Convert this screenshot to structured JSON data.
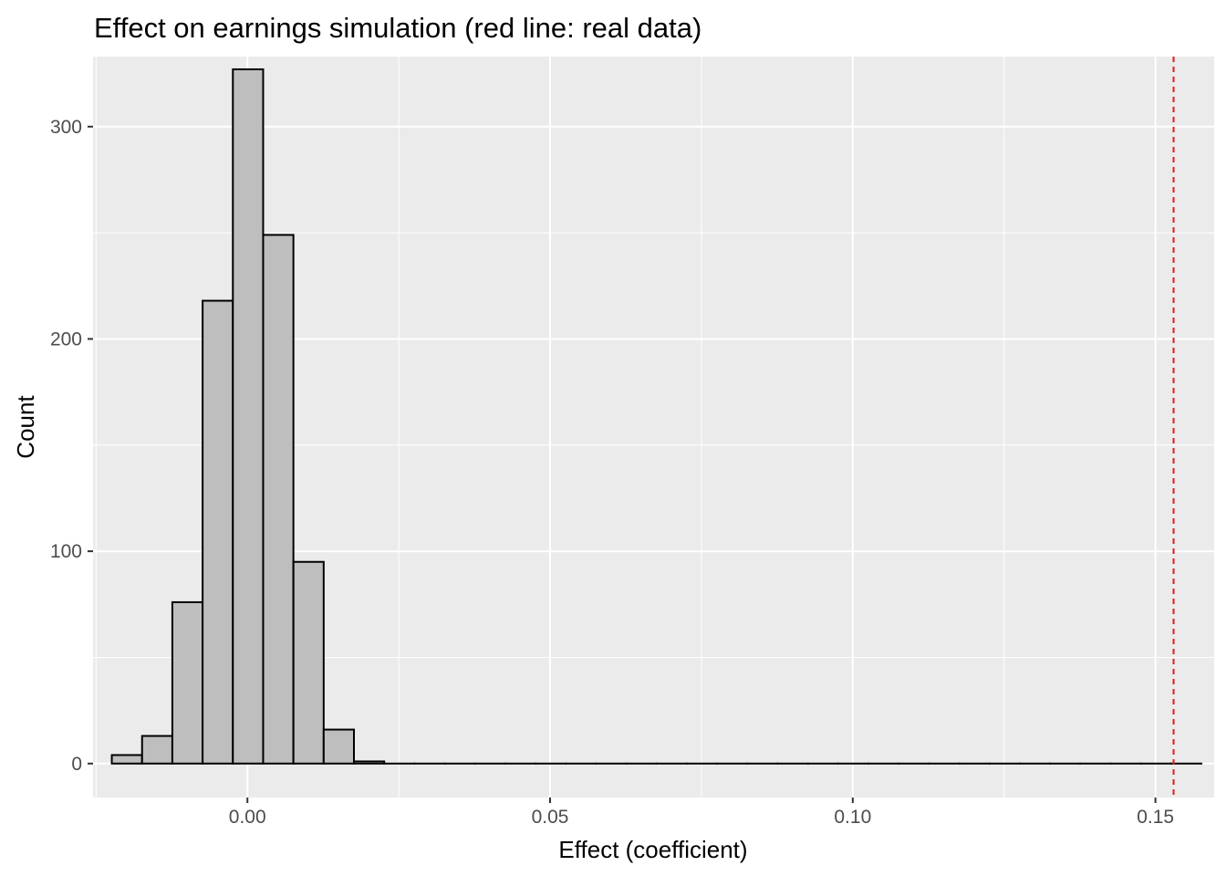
{
  "chart_data": {
    "type": "bar",
    "title": "Effect on earnings simulation (red line: real data)",
    "xlabel": "Effect (coefficient)",
    "ylabel": "Count",
    "xlim": [
      -0.0255,
      0.1597
    ],
    "ylim": [
      -16,
      333
    ],
    "x_ticks": [
      "0.00",
      "0.05",
      "0.10",
      "0.15"
    ],
    "x_tick_values": [
      0.0,
      0.05,
      0.1,
      0.15
    ],
    "y_ticks": [
      "0",
      "100",
      "200",
      "300"
    ],
    "y_tick_values": [
      0,
      100,
      200,
      300
    ],
    "x_minor_grid": [
      -0.025,
      0.025,
      0.075,
      0.125
    ],
    "y_minor_grid": [
      50,
      150,
      250
    ],
    "bin_width": 0.005,
    "bin_starts": [
      -0.0224,
      -0.0174,
      -0.0124,
      -0.0074,
      -0.0024,
      0.0026,
      0.0076,
      0.0126,
      0.0176,
      0.0226,
      0.0276,
      0.0326,
      0.0376,
      0.0426,
      0.0476,
      0.0526,
      0.0576,
      0.0626,
      0.0676,
      0.0726,
      0.0776,
      0.0826,
      0.0876,
      0.0926,
      0.0976,
      0.1026,
      0.1076,
      0.1126,
      0.1176,
      0.1226,
      0.1276,
      0.1326,
      0.1376,
      0.1426,
      0.1476,
      0.1526
    ],
    "counts": [
      4,
      13,
      76,
      218,
      327,
      249,
      95,
      16,
      1,
      0,
      0,
      0,
      0,
      0,
      0,
      0,
      0,
      0,
      0,
      0,
      0,
      0,
      0,
      0,
      0,
      0,
      0,
      0,
      0,
      0,
      0,
      0,
      0,
      0,
      0,
      0
    ],
    "reference_line": {
      "x": 0.153,
      "style": "dashed",
      "color": "#e41a1c"
    },
    "colors": {
      "panel": "#ebebeb",
      "grid": "#ffffff",
      "bar_fill": "#bebebe",
      "bar_stroke": "#000000"
    }
  }
}
